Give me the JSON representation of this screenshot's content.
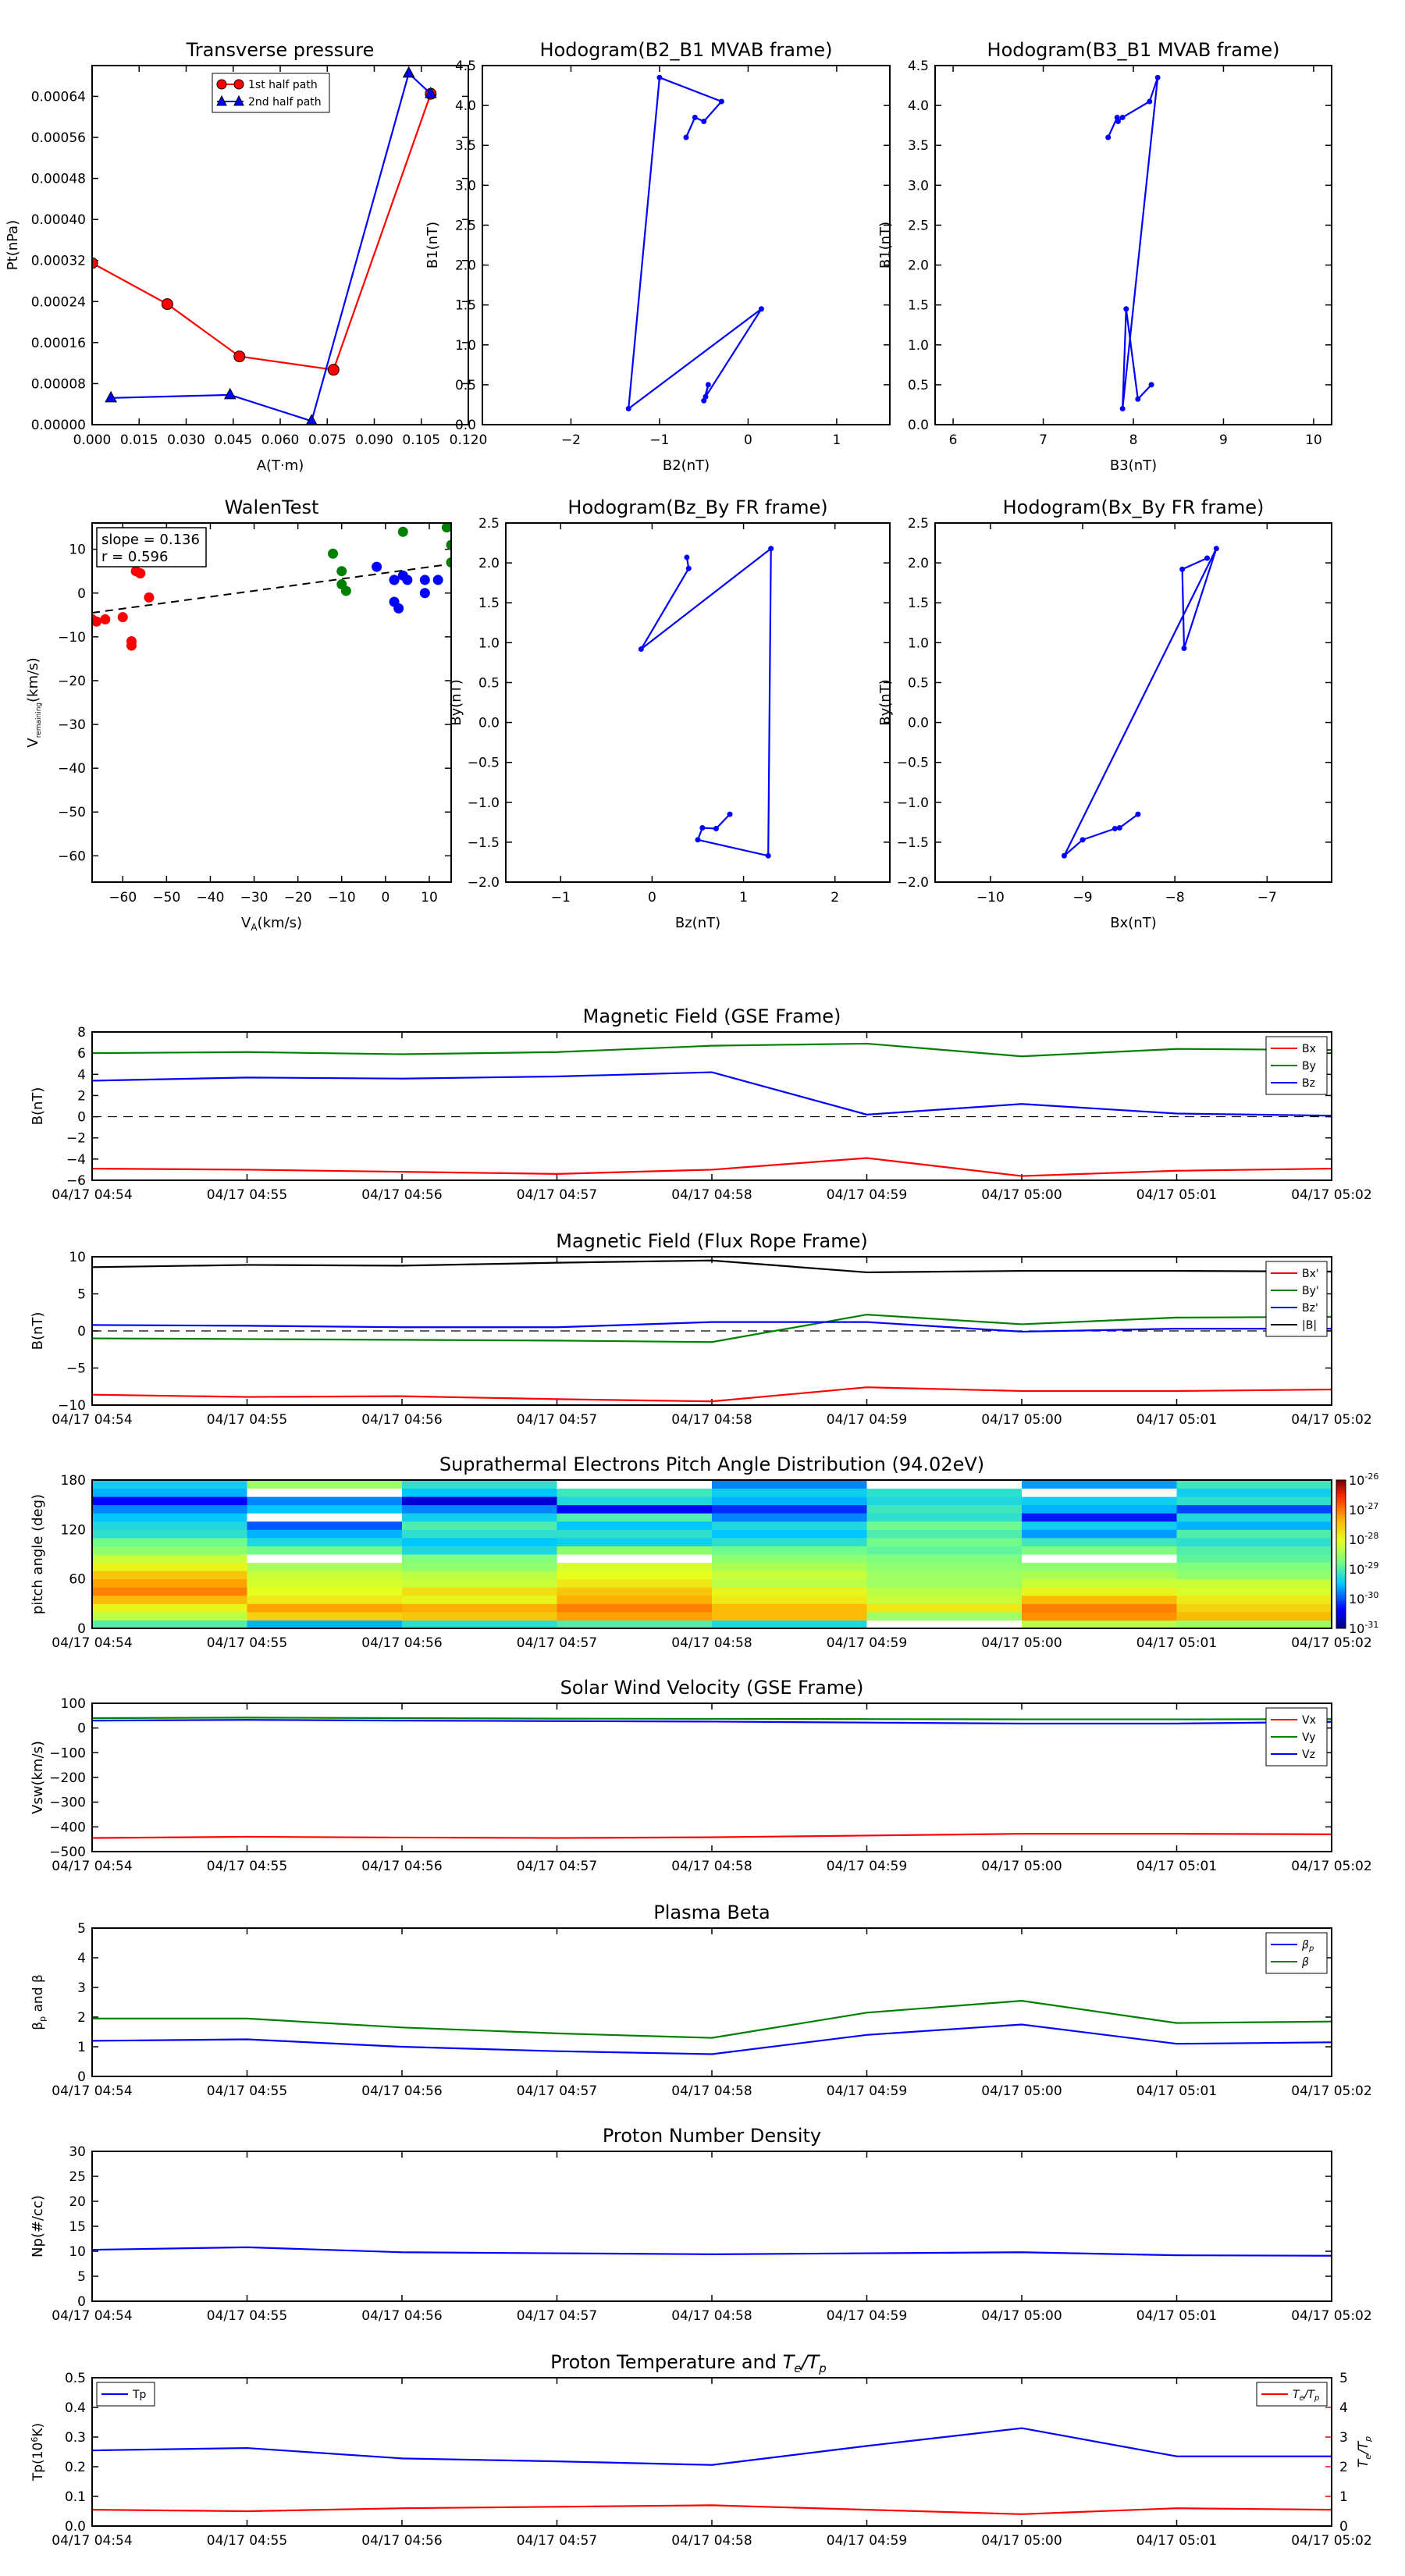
{
  "colors": {
    "red": "#ff0000",
    "green": "#008000",
    "blue": "#0000ff",
    "black": "#000000",
    "axis": "#000000"
  },
  "time_ticks": [
    "04/17 04:54",
    "04/17 04:55",
    "04/17 04:56",
    "04/17 04:57",
    "04/17 04:58",
    "04/17 04:59",
    "04/17 05:00",
    "04/17 05:01",
    "04/17 05:02"
  ],
  "chart_data": [
    {
      "id": "transverse",
      "type": "line",
      "title": "Transverse pressure",
      "xlabel": "A(T·m)",
      "ylabel": "Pt(nPa)",
      "xlim": [
        0,
        0.12
      ],
      "ylim": [
        0,
        0.0007
      ],
      "xticks": [
        "0.000",
        "0.015",
        "0.030",
        "0.045",
        "0.060",
        "0.075",
        "0.090",
        "0.105",
        "0.120"
      ],
      "yticks": [
        "0.00000",
        "0.00008",
        "0.00016",
        "0.00024",
        "0.00032",
        "0.00040",
        "0.00048",
        "0.00056",
        "0.00064"
      ],
      "legend": "upper center",
      "series": [
        {
          "name": "1st half path",
          "color": "#ff0000",
          "marker": "circle",
          "x": [
            0.0,
            0.024,
            0.047,
            0.077,
            0.108
          ],
          "y": [
            0.000315,
            0.000235,
            0.000133,
            0.000107,
            0.000645
          ]
        },
        {
          "name": "2nd half path",
          "color": "#0000ff",
          "marker": "triangle",
          "x": [
            0.006,
            0.044,
            0.07,
            0.101,
            0.108
          ],
          "y": [
            5.2e-05,
            5.8e-05,
            7e-06,
            0.000685,
            0.000645
          ]
        }
      ]
    },
    {
      "id": "hodo1",
      "type": "line",
      "title": "Hodogram(B2_B1 MVAB frame)",
      "xlabel": "B2(nT)",
      "ylabel": "B1(nT)",
      "xlim": [
        -3,
        1.6
      ],
      "ylim": [
        0,
        4.5
      ],
      "xticks": [
        "−2",
        "−1",
        "0",
        "1"
      ],
      "yticks": [
        "0.0",
        "0.5",
        "1.0",
        "1.5",
        "2.0",
        "2.5",
        "3.0",
        "3.5",
        "4.0",
        "4.5"
      ],
      "series": [
        {
          "color": "#0000ff",
          "x": [
            -0.5,
            -0.45,
            -0.48,
            0.15,
            -1.35,
            -1.0,
            -0.3,
            -0.5,
            -0.6,
            -0.7
          ],
          "y": [
            0.3,
            0.5,
            0.35,
            1.45,
            0.2,
            4.35,
            4.05,
            3.8,
            3.85,
            3.6
          ]
        }
      ]
    },
    {
      "id": "hodo2",
      "type": "line",
      "title": "Hodogram(B3_B1 MVAB frame)",
      "xlabel": "B3(nT)",
      "ylabel": "B1(nT)",
      "xlim": [
        5.8,
        10.2
      ],
      "ylim": [
        0,
        4.5
      ],
      "xticks": [
        "6",
        "7",
        "8",
        "9",
        "10"
      ],
      "yticks": [
        "0.0",
        "0.5",
        "1.0",
        "1.5",
        "2.0",
        "2.5",
        "3.0",
        "3.5",
        "4.0",
        "4.5"
      ],
      "series": [
        {
          "color": "#0000ff",
          "x": [
            8.2,
            8.05,
            7.92,
            7.88,
            8.27,
            8.18,
            7.88,
            7.83,
            7.82,
            7.72
          ],
          "y": [
            0.5,
            0.32,
            1.45,
            0.2,
            4.35,
            4.05,
            3.85,
            3.8,
            3.85,
            3.6
          ]
        }
      ]
    },
    {
      "id": "walen",
      "type": "scatter",
      "title": "WalenTest",
      "xlabel": "V_A(km/s)",
      "ylabel": "V_remaining(km/s)",
      "xlim": [
        -67,
        15
      ],
      "ylim": [
        -66,
        16
      ],
      "xticks": [
        "−60",
        "−50",
        "−40",
        "−30",
        "−20",
        "−10",
        "0",
        "10"
      ],
      "yticks": [
        "−60",
        "−50",
        "−40",
        "−30",
        "−20",
        "−10",
        "0",
        "10"
      ],
      "annotation": [
        "slope = 0.136",
        "r = 0.596"
      ],
      "fit": {
        "slope": 0.136,
        "intercept": 4.6
      },
      "series": [
        {
          "color": "#ff0000",
          "x": [
            -67,
            -64,
            -60,
            -58,
            -58,
            -57,
            -56,
            -54,
            -56,
            -66
          ],
          "y": [
            -6,
            -6,
            -5.5,
            -11,
            -12,
            5,
            4.5,
            -1,
            4.5,
            -6.5
          ]
        },
        {
          "color": "#008000",
          "x": [
            -12,
            -10,
            -10,
            -9,
            4,
            14,
            15,
            15
          ],
          "y": [
            9,
            5,
            2,
            0.5,
            14,
            15,
            11,
            7
          ]
        },
        {
          "color": "#0000ff",
          "x": [
            -2,
            2,
            2,
            3,
            2,
            4,
            5,
            9,
            9,
            12
          ],
          "y": [
            6,
            3,
            -2,
            -3.5,
            3,
            4,
            3,
            3,
            0,
            3
          ]
        }
      ]
    },
    {
      "id": "hodo3",
      "type": "line",
      "title": "Hodogram(Bz_By FR frame)",
      "xlabel": "Bz(nT)",
      "ylabel": "By(nT)",
      "xlim": [
        -1.6,
        2.6
      ],
      "ylim": [
        -2,
        2.5
      ],
      "xticks": [
        "−1",
        "0",
        "1",
        "2"
      ],
      "yticks": [
        "−2.0",
        "−1.5",
        "−1.0",
        "−0.5",
        "0.0",
        "0.5",
        "1.0",
        "1.5",
        "2.0",
        "2.5"
      ],
      "series": [
        {
          "color": "#0000ff",
          "x": [
            0.85,
            0.7,
            0.55,
            0.5,
            1.27,
            1.3,
            -0.12,
            0.4,
            0.38
          ],
          "y": [
            -1.15,
            -1.33,
            -1.32,
            -1.47,
            -1.67,
            2.18,
            0.92,
            1.93,
            2.07
          ]
        }
      ]
    },
    {
      "id": "hodo4",
      "type": "line",
      "title": "Hodogram(Bx_By FR frame)",
      "xlabel": "Bx(nT)",
      "ylabel": "By(nT)",
      "xlim": [
        -10.6,
        -6.3
      ],
      "ylim": [
        -2,
        2.5
      ],
      "xticks": [
        "−10",
        "−9",
        "−8",
        "−7"
      ],
      "yticks": [
        "−2.0",
        "−1.5",
        "−1.0",
        "−0.5",
        "0.0",
        "0.5",
        "1.0",
        "1.5",
        "2.0",
        "2.5"
      ],
      "series": [
        {
          "color": "#0000ff",
          "x": [
            -8.4,
            -8.6,
            -8.65,
            -9.0,
            -9.2,
            -7.55,
            -7.9,
            -7.92,
            -7.65
          ],
          "y": [
            -1.15,
            -1.32,
            -1.33,
            -1.47,
            -1.67,
            2.18,
            0.93,
            1.92,
            2.06
          ]
        }
      ]
    },
    {
      "id": "magfield_gse",
      "type": "line",
      "title": "Magnetic Field (GSE Frame)",
      "ylabel": "B(nT)",
      "ylim": [
        -6,
        8
      ],
      "yticks": [
        "−6",
        "−4",
        "−2",
        "0",
        "2",
        "4",
        "6",
        "8"
      ],
      "legend": "upper right",
      "dashed_zero": true,
      "series": [
        {
          "name": "Bx",
          "color": "#ff0000",
          "values": [
            -4.9,
            -5.0,
            -5.2,
            -5.4,
            -5.0,
            -3.9,
            -5.6,
            -5.1,
            -4.9
          ]
        },
        {
          "name": "By",
          "color": "#008000",
          "values": [
            6.0,
            6.1,
            5.9,
            6.1,
            6.7,
            6.9,
            5.7,
            6.4,
            6.3
          ]
        },
        {
          "name": "Bz",
          "color": "#0000ff",
          "values": [
            3.4,
            3.7,
            3.6,
            3.8,
            4.2,
            0.2,
            1.2,
            0.3,
            0.1
          ]
        }
      ]
    },
    {
      "id": "magfield_fr",
      "type": "line",
      "title": "Magnetic Field (Flux Rope Frame)",
      "ylabel": "B(nT)",
      "ylim": [
        -10,
        10
      ],
      "yticks": [
        "−10",
        "−5",
        "0",
        "5",
        "10"
      ],
      "legend": "upper right",
      "dashed_zero": true,
      "series": [
        {
          "name": "Bx'",
          "color": "#ff0000",
          "values": [
            -8.6,
            -8.9,
            -8.8,
            -9.2,
            -9.5,
            -7.6,
            -8.1,
            -8.1,
            -7.9
          ]
        },
        {
          "name": "By'",
          "color": "#008000",
          "values": [
            -1.0,
            -1.1,
            -1.2,
            -1.3,
            -1.5,
            2.2,
            0.9,
            1.8,
            1.9
          ]
        },
        {
          "name": "Bz'",
          "color": "#0000ff",
          "values": [
            0.8,
            0.7,
            0.5,
            0.5,
            1.2,
            1.2,
            -0.1,
            0.3,
            0.3
          ]
        },
        {
          "name": "|B|",
          "color": "#000000",
          "values": [
            8.6,
            8.9,
            8.8,
            9.2,
            9.5,
            7.9,
            8.1,
            8.1,
            8.0
          ]
        }
      ]
    },
    {
      "id": "pad",
      "type": "heatmap",
      "title": "Suprathermal Electrons Pitch Angle Distribution (94.02eV)",
      "ylabel": "pitch angle (deg)",
      "ylim": [
        0,
        180
      ],
      "yticks": [
        "0",
        "60",
        "120",
        "180"
      ],
      "colorbar": {
        "ticks": [
          "10",
          "10",
          "10",
          "10",
          "10",
          "10"
        ],
        "exponents": [
          "-26",
          "-27",
          "-28",
          "-29",
          "-30",
          "-31"
        ],
        "range": [
          -31,
          -26
        ]
      },
      "columns": [
        [
          -29.0,
          -28.3,
          -27.9,
          -27.4,
          -27.0,
          -27.2,
          -27.5,
          -27.9,
          -28.2,
          -28.6,
          -28.8,
          -29.2,
          -29.3,
          -29.5,
          -29.8,
          -30.4,
          -29.6,
          -29.4
        ],
        [
          -29.6,
          -27.6,
          -27.2,
          -27.8,
          -28.0,
          -28.1,
          -28.2,
          -28.4,
          -31.0,
          -28.8,
          -29.3,
          -29.6,
          -30.0,
          -31.0,
          -29.5,
          -29.8,
          -31.0,
          -28.5
        ],
        [
          -29.2,
          -27.5,
          -27.3,
          -27.9,
          -27.7,
          -28.2,
          -28.3,
          -28.6,
          -28.7,
          -29.3,
          -29.5,
          -29.2,
          -29.0,
          -29.4,
          -29.8,
          -30.6,
          -29.5,
          -29.2
        ],
        [
          -29.0,
          -27.2,
          -27.0,
          -27.3,
          -27.5,
          -27.8,
          -28.0,
          -28.1,
          -31.0,
          -28.6,
          -29.4,
          -29.2,
          -29.5,
          -29.0,
          -30.4,
          -29.3,
          -29.1,
          -31.0
        ],
        [
          -29.3,
          -27.4,
          -27.4,
          -27.8,
          -27.9,
          -28.3,
          -28.2,
          -28.4,
          -28.6,
          -28.8,
          -29.2,
          -29.5,
          -29.3,
          -29.8,
          -30.2,
          -29.6,
          -29.4,
          -29.8
        ],
        [
          -31.0,
          -28.5,
          -27.8,
          -28.2,
          -28.3,
          -28.5,
          -28.5,
          -28.6,
          -28.7,
          -28.9,
          -28.8,
          -29.0,
          -28.8,
          -29.2,
          -29.1,
          -29.3,
          -29.2,
          -31.0
        ],
        [
          -28.3,
          -27.1,
          -27.0,
          -27.4,
          -27.9,
          -28.2,
          -28.4,
          -28.6,
          -31.0,
          -28.7,
          -29.1,
          -29.7,
          -29.4,
          -30.3,
          -29.6,
          -29.4,
          -31.0,
          -29.7
        ],
        [
          -28.5,
          -27.4,
          -27.6,
          -27.8,
          -28.1,
          -28.2,
          -28.6,
          -28.7,
          -28.9,
          -29.0,
          -29.2,
          -29.0,
          -29.6,
          -29.3,
          -30.1,
          -29.2,
          -29.4,
          -29.1
        ]
      ]
    },
    {
      "id": "vsw",
      "type": "line",
      "title": "Solar Wind Velocity (GSE Frame)",
      "ylabel": "Vsw(km/s)",
      "ylim": [
        -500,
        100
      ],
      "yticks": [
        "−500",
        "−400",
        "−300",
        "−200",
        "−100",
        "0",
        "100"
      ],
      "legend": "upper right",
      "series": [
        {
          "name": "Vx",
          "color": "#ff0000",
          "values": [
            -445,
            -440,
            -443,
            -445,
            -442,
            -435,
            -428,
            -428,
            -430
          ]
        },
        {
          "name": "Vy",
          "color": "#008000",
          "values": [
            40,
            42,
            40,
            38,
            37,
            36,
            35,
            35,
            36
          ]
        },
        {
          "name": "Vz",
          "color": "#0000ff",
          "values": [
            30,
            33,
            30,
            28,
            26,
            22,
            18,
            18,
            25
          ]
        }
      ]
    },
    {
      "id": "beta",
      "type": "line",
      "title": "Plasma Beta",
      "ylabel": "β_p and β",
      "ylim": [
        0,
        5
      ],
      "yticks": [
        "0",
        "1",
        "2",
        "3",
        "4",
        "5"
      ],
      "legend": "upper right",
      "series": [
        {
          "name": "β_p",
          "color": "#0000ff",
          "values": [
            1.2,
            1.25,
            1.0,
            0.85,
            0.75,
            1.4,
            1.75,
            1.1,
            1.15
          ]
        },
        {
          "name": "β",
          "color": "#008000",
          "values": [
            1.95,
            1.95,
            1.65,
            1.45,
            1.3,
            2.15,
            2.55,
            1.8,
            1.85
          ]
        }
      ]
    },
    {
      "id": "density",
      "type": "line",
      "title": "Proton Number Density",
      "ylabel": "Np(#/cc)",
      "ylim": [
        0,
        30
      ],
      "yticks": [
        "0",
        "5",
        "10",
        "15",
        "20",
        "25",
        "30"
      ],
      "series": [
        {
          "color": "#0000ff",
          "values": [
            10.3,
            10.8,
            9.8,
            9.6,
            9.4,
            9.6,
            9.8,
            9.2,
            9.1
          ]
        }
      ]
    },
    {
      "id": "temp",
      "type": "line",
      "title": "Proton Temperature and Te/Tp",
      "ylabel": "Tp(10^6K)",
      "ylabel2": "Te/Tp",
      "ylim": [
        0,
        0.5
      ],
      "ylim2": [
        0,
        5
      ],
      "yticks": [
        "0.0",
        "0.1",
        "0.2",
        "0.3",
        "0.4",
        "0.5"
      ],
      "yticks2": [
        "0",
        "1",
        "2",
        "3",
        "4",
        "5"
      ],
      "series": [
        {
          "name": "Tp",
          "color": "#0000ff",
          "axis": "left",
          "values": [
            0.255,
            0.263,
            0.228,
            0.218,
            0.206,
            0.27,
            0.33,
            0.235,
            0.235
          ]
        },
        {
          "name": "Te/Tp",
          "color": "#ff0000",
          "axis": "right",
          "values": [
            0.55,
            0.5,
            0.6,
            0.65,
            0.7,
            0.55,
            0.4,
            0.6,
            0.55
          ]
        }
      ]
    }
  ]
}
